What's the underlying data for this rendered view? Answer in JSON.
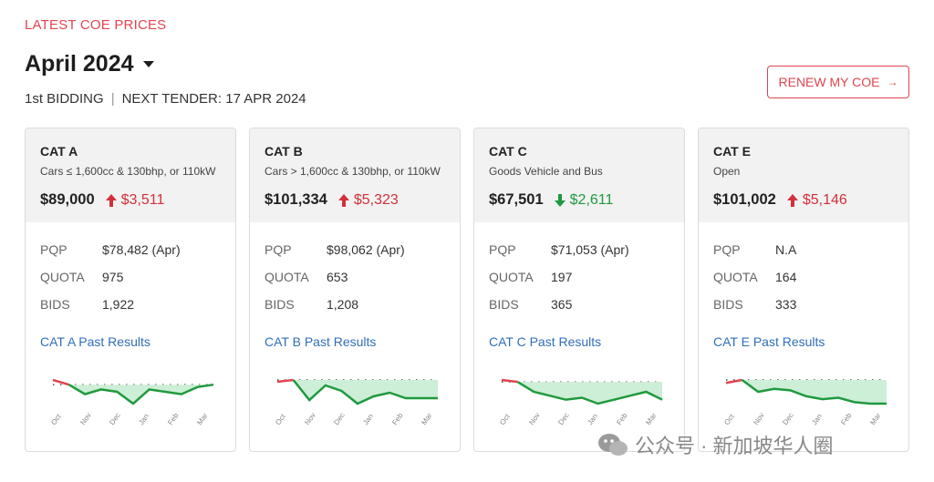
{
  "header": {
    "eyebrow": "LATEST COE PRICES",
    "month": "April 2024",
    "bidding": "1st BIDDING",
    "separator": "|",
    "next_tender": "NEXT TENDER: 17 APR 2024",
    "renew_label": "RENEW MY COE"
  },
  "colors": {
    "accent": "#e0454f",
    "up": "#d3303a",
    "down": "#1f9a3e",
    "link": "#2f6fb8",
    "spark_fill": "#cdeed7"
  },
  "row_labels": {
    "pqp": "PQP",
    "quota": "QUOTA",
    "bids": "BIDS"
  },
  "months": [
    "Oct",
    "Nov",
    "Dec",
    "Jan",
    "Feb",
    "Mar"
  ],
  "cards": [
    {
      "cat": "CAT A",
      "desc": "Cars ≤ 1,600cc & 130bhp, or 110kW",
      "price": "$89,000",
      "change": "$3,511",
      "direction": "up",
      "pqp": "$78,482 (Apr)",
      "quota": "975",
      "bids": "1,922",
      "link": "CAT A Past Results",
      "trend": [
        88,
        86,
        82,
        84,
        83,
        78,
        84,
        83,
        82,
        85,
        86
      ]
    },
    {
      "cat": "CAT B",
      "desc": "Cars > 1,600cc & 130bhp, or 110kW",
      "price": "$101,334",
      "change": "$5,323",
      "direction": "up",
      "pqp": "$98,062 (Apr)",
      "quota": "653",
      "bids": "1,208",
      "link": "CAT B Past Results",
      "trend": [
        104,
        105,
        94,
        102,
        99,
        92,
        96,
        98,
        95,
        95,
        95
      ]
    },
    {
      "cat": "CAT C",
      "desc": "Goods Vehicle and Bus",
      "price": "$67,501",
      "change": "$2,611",
      "direction": "down",
      "pqp": "$71,053 (Apr)",
      "quota": "197",
      "bids": "365",
      "link": "CAT C Past Results",
      "trend": [
        80,
        79,
        74,
        72,
        70,
        71,
        68,
        70,
        72,
        74,
        70
      ]
    },
    {
      "cat": "CAT E",
      "desc": "Open",
      "price": "$101,002",
      "change": "$5,146",
      "direction": "up",
      "pqp": "N.A",
      "quota": "164",
      "bids": "333",
      "link": "CAT E Past Results",
      "trend": [
        104,
        106,
        98,
        100,
        99,
        95,
        93,
        94,
        91,
        90,
        90
      ]
    }
  ],
  "watermark": "公众号 · 新加坡华人圈"
}
